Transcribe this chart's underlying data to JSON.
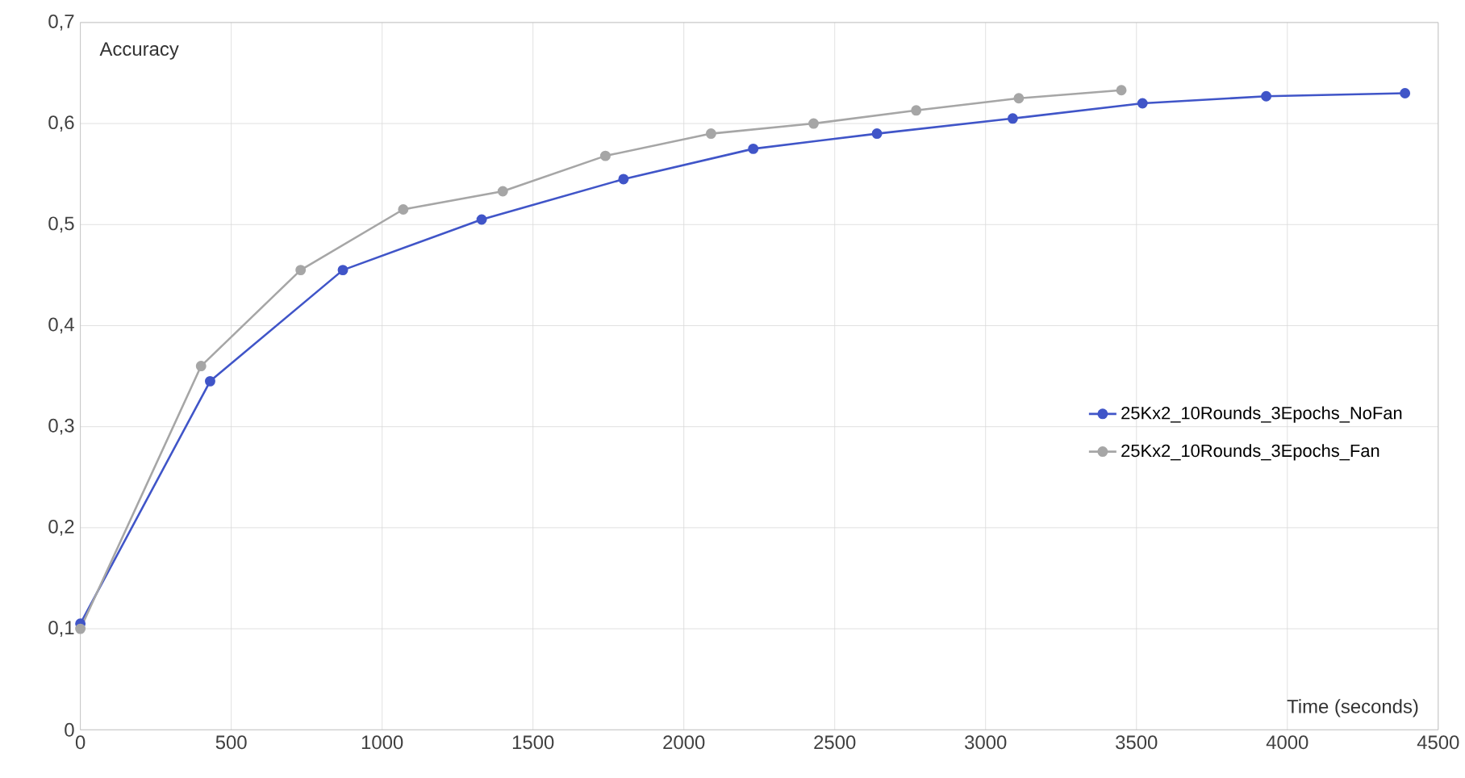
{
  "chart_data": {
    "type": "line",
    "xlabel": "Time (seconds)",
    "ylabel": "Accuracy",
    "xlim": [
      0,
      4500
    ],
    "xticks": [
      0,
      500,
      1000,
      1500,
      2000,
      2500,
      3000,
      3500,
      4000,
      4500
    ],
    "ylim": [
      0,
      0.7
    ],
    "yticks": [
      {
        "value": 0,
        "label": "0"
      },
      {
        "value": 0.1,
        "label": "0,1"
      },
      {
        "value": 0.2,
        "label": "0,2"
      },
      {
        "value": 0.3,
        "label": "0,3"
      },
      {
        "value": 0.4,
        "label": "0,4"
      },
      {
        "value": 0.5,
        "label": "0,5"
      },
      {
        "value": 0.6,
        "label": "0,6"
      },
      {
        "value": 0.7,
        "label": "0,7"
      }
    ],
    "grid": true,
    "legend": "right",
    "marker": "circle",
    "line_style": "solid",
    "series": [
      {
        "name": "25Kx2_10Rounds_3Epochs_NoFan",
        "color": "#4055c8",
        "x": [
          0,
          430,
          870,
          1330,
          1800,
          2230,
          2640,
          3090,
          3520,
          3930,
          4390
        ],
        "values": [
          0.105,
          0.345,
          0.455,
          0.505,
          0.545,
          0.575,
          0.59,
          0.605,
          0.62,
          0.627,
          0.63
        ]
      },
      {
        "name": "25Kx2_10Rounds_3Epochs_Fan",
        "color": "#a6a6a6",
        "x": [
          0,
          400,
          730,
          1070,
          1400,
          1740,
          2090,
          2430,
          2770,
          3110,
          3450
        ],
        "values": [
          0.1,
          0.36,
          0.455,
          0.515,
          0.533,
          0.568,
          0.59,
          0.6,
          0.613,
          0.625,
          0.633
        ]
      }
    ]
  }
}
